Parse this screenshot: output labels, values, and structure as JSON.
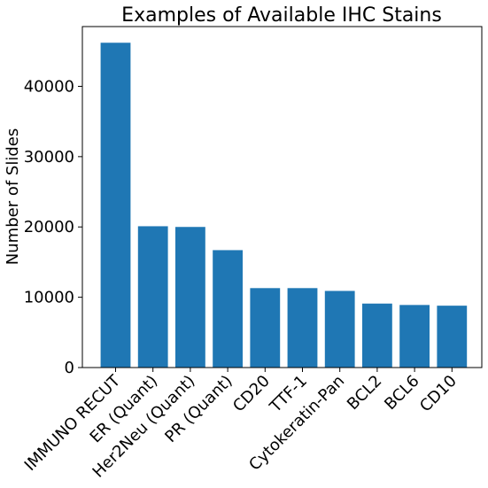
{
  "chart_data": {
    "type": "bar",
    "title": "Examples of Available IHC Stains",
    "xlabel": "",
    "ylabel": "Number of Slides",
    "categories": [
      "IMMUNO RECUT",
      "ER (Quant)",
      "Her2Neu (Quant)",
      "PR (Quant)",
      "CD20",
      "TTF-1",
      "Cytokeratin-Pan",
      "BCL2",
      "BCL6",
      "CD10"
    ],
    "values": [
      46200,
      20100,
      20000,
      16700,
      11300,
      11300,
      10900,
      9100,
      8900,
      8800
    ],
    "ylim": [
      0,
      48500
    ],
    "yticks": [
      0,
      10000,
      20000,
      30000,
      40000
    ],
    "ytick_labels": [
      "0",
      "10000",
      "20000",
      "30000",
      "40000"
    ],
    "bar_color": "#1f77b4",
    "grid": false,
    "legend": "none"
  }
}
